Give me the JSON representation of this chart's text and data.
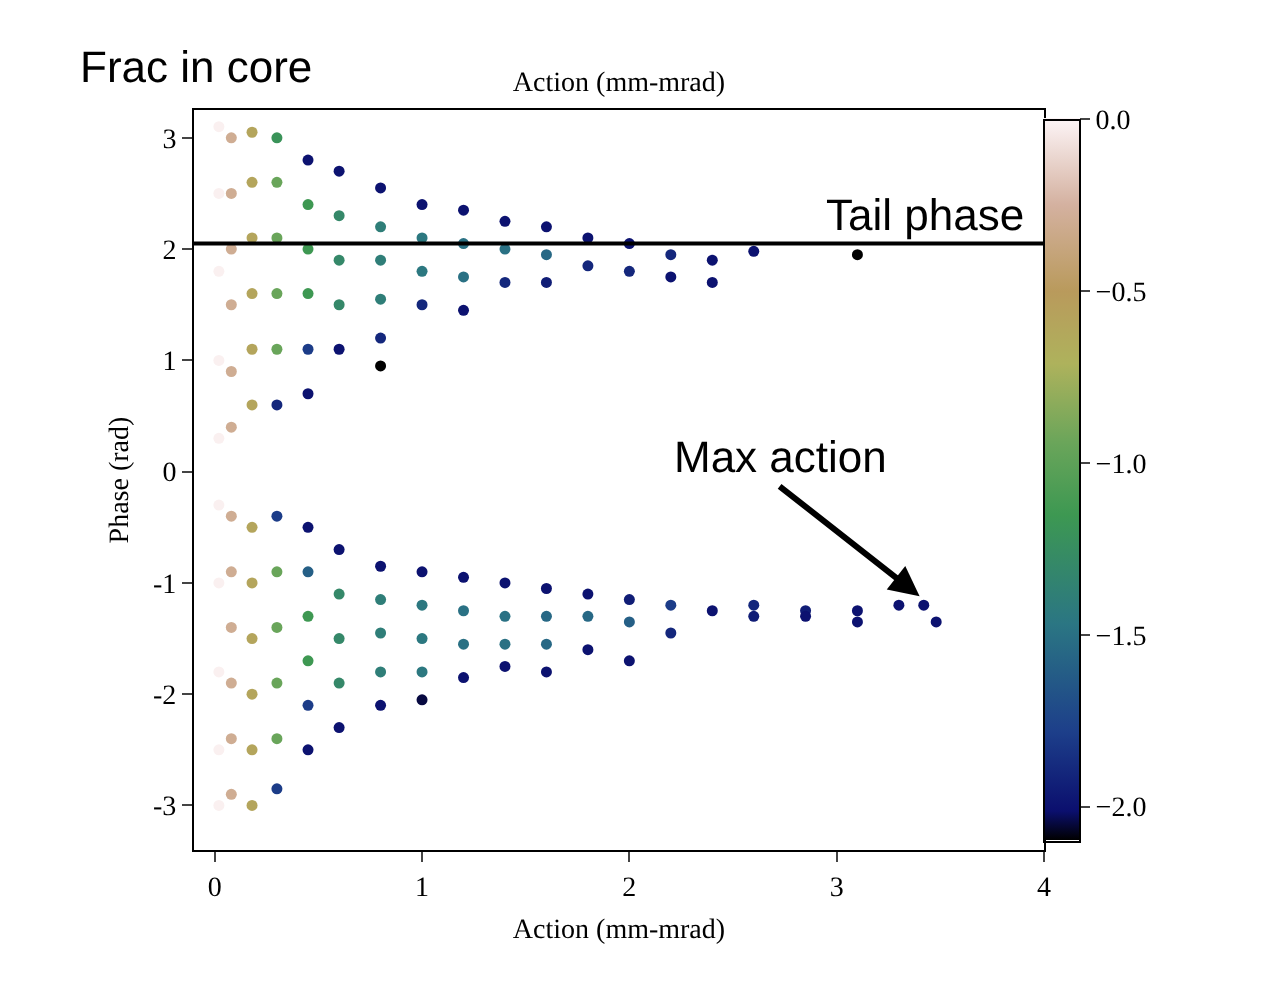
{
  "chart_data": {
    "type": "scatter",
    "clabel": "Frac in core",
    "x2label": "Action (mm-mrad)",
    "xlabel": "Action (mm-mrad)",
    "ylabel": "Phase (rad)",
    "xlim": [
      -0.1,
      4
    ],
    "xticks": [
      0,
      1,
      2,
      3,
      4
    ],
    "ylim": [
      -3.4,
      3.25
    ],
    "yticks": [
      -3,
      -2,
      -1,
      0,
      1,
      2,
      3
    ],
    "clim": [
      -2.1,
      0
    ],
    "cticks": [
      {
        "value": 0,
        "label": "0.0"
      },
      {
        "value": -0.5,
        "label": "−0.5"
      },
      {
        "value": -1,
        "label": "−1.0"
      },
      {
        "value": -1.5,
        "label": "−1.5"
      },
      {
        "value": -2,
        "label": "−2.0"
      }
    ],
    "legend": false,
    "marker": "circle",
    "ref_lines": [
      {
        "axis": "y",
        "value": 2.05,
        "label": "Tail phase",
        "color": "#000000"
      }
    ],
    "annotations": [
      {
        "text": "Max action",
        "x": 3.4,
        "y": -1.12
      }
    ],
    "x": [
      0.02,
      0.02,
      0.02,
      0.02,
      0.02,
      0.02,
      0.02,
      0.02,
      0.02,
      0.02,
      0.08,
      0.08,
      0.08,
      0.08,
      0.08,
      0.08,
      0.08,
      0.08,
      0.08,
      0.08,
      0.08,
      0.08,
      0.18,
      0.18,
      0.18,
      0.18,
      0.18,
      0.18,
      0.18,
      0.18,
      0.18,
      0.18,
      0.18,
      0.18,
      0.3,
      0.3,
      0.3,
      0.3,
      0.3,
      0.3,
      0.3,
      0.3,
      0.3,
      0.3,
      0.3,
      0.3,
      0.45,
      0.45,
      0.45,
      0.45,
      0.45,
      0.45,
      0.45,
      0.45,
      0.45,
      0.45,
      0.45,
      0.45,
      0.6,
      0.6,
      0.6,
      0.6,
      0.6,
      0.6,
      0.6,
      0.6,
      0.6,
      0.6,
      0.8,
      0.8,
      0.8,
      0.8,
      0.8,
      0.8,
      0.8,
      0.8,
      0.8,
      0.8,
      0.8,
      1.0,
      1.0,
      1.0,
      1.0,
      1.0,
      1.0,
      1.0,
      1.0,
      1.0,
      1.2,
      1.2,
      1.2,
      1.2,
      1.2,
      1.2,
      1.2,
      1.2,
      1.4,
      1.4,
      1.4,
      1.4,
      1.4,
      1.4,
      1.4,
      1.6,
      1.6,
      1.6,
      1.6,
      1.6,
      1.6,
      1.6,
      1.8,
      1.8,
      1.8,
      1.8,
      1.8,
      2.0,
      2.0,
      2.0,
      2.0,
      2.0,
      2.2,
      2.2,
      2.2,
      2.2,
      2.4,
      2.4,
      2.4,
      2.6,
      2.6,
      2.6,
      2.85,
      2.85,
      3.1,
      3.1,
      3.1,
      3.3,
      3.42,
      3.48
    ],
    "values": [
      3.1,
      2.5,
      1.8,
      1.0,
      0.3,
      -0.3,
      -1.0,
      -1.8,
      -2.5,
      -3.0,
      3.0,
      2.5,
      2.0,
      1.5,
      0.9,
      0.4,
      -0.4,
      -0.9,
      -1.4,
      -1.9,
      -2.4,
      -2.9,
      3.05,
      2.6,
      2.1,
      1.6,
      1.1,
      0.6,
      -0.5,
      -1.0,
      -1.5,
      -2.0,
      -2.5,
      -3.0,
      3.0,
      2.6,
      2.1,
      1.6,
      1.1,
      0.6,
      -0.4,
      -0.9,
      -1.4,
      -1.9,
      -2.4,
      -2.85,
      2.8,
      2.4,
      2.0,
      1.6,
      1.1,
      0.7,
      -0.5,
      -0.9,
      -1.3,
      -1.7,
      -2.1,
      -2.5,
      2.7,
      2.3,
      1.9,
      1.5,
      1.1,
      -0.7,
      -1.1,
      -1.5,
      -1.9,
      -2.3,
      2.55,
      2.2,
      1.9,
      1.55,
      1.2,
      0.95,
      -0.85,
      -1.15,
      -1.45,
      -1.8,
      -2.1,
      2.4,
      2.1,
      1.8,
      1.5,
      -0.9,
      -1.2,
      -1.5,
      -1.8,
      -2.05,
      2.35,
      2.05,
      1.75,
      1.45,
      -0.95,
      -1.25,
      -1.55,
      -1.85,
      2.25,
      2.0,
      1.7,
      -1.0,
      -1.3,
      -1.55,
      -1.75,
      2.2,
      1.95,
      1.7,
      -1.05,
      -1.3,
      -1.55,
      -1.8,
      2.1,
      1.85,
      -1.1,
      -1.3,
      -1.6,
      2.05,
      1.8,
      -1.15,
      -1.35,
      -1.7,
      1.95,
      1.75,
      -1.2,
      -1.45,
      1.9,
      1.7,
      -1.25,
      1.98,
      -1.2,
      -1.3,
      -1.25,
      -1.3,
      1.95,
      -1.25,
      -1.35,
      -1.2,
      -1.2,
      -1.35
    ],
    "cvalues": [
      -0.02,
      -0.02,
      -0.02,
      -0.02,
      -0.02,
      -0.02,
      -0.02,
      -0.02,
      -0.02,
      -0.02,
      -0.3,
      -0.3,
      -0.3,
      -0.3,
      -0.3,
      -0.3,
      -0.3,
      -0.3,
      -0.3,
      -0.3,
      -0.3,
      -0.3,
      -0.6,
      -0.6,
      -0.6,
      -0.6,
      -0.6,
      -0.6,
      -0.6,
      -0.6,
      -0.6,
      -0.6,
      -0.6,
      -0.6,
      -1.2,
      -0.95,
      -0.95,
      -0.95,
      -0.95,
      -1.9,
      -1.8,
      -0.95,
      -0.95,
      -0.95,
      -0.95,
      -1.8,
      -2.0,
      -1.15,
      -1.15,
      -1.15,
      -1.8,
      -2.0,
      -2.0,
      -1.6,
      -1.15,
      -1.15,
      -1.8,
      -2.0,
      -2.0,
      -1.3,
      -1.3,
      -1.3,
      -2.0,
      -2.0,
      -1.3,
      -1.3,
      -1.3,
      -2.0,
      -2.0,
      -1.4,
      -1.4,
      -1.4,
      -1.9,
      -2.1,
      -2.0,
      -1.4,
      -1.4,
      -1.4,
      -2.0,
      -2.0,
      -1.45,
      -1.45,
      -1.9,
      -2.0,
      -1.45,
      -1.45,
      -1.45,
      -2.05,
      -2.0,
      -1.5,
      -1.5,
      -2.0,
      -2.0,
      -1.5,
      -1.5,
      -2.0,
      -2.0,
      -1.5,
      -1.9,
      -2.0,
      -1.5,
      -1.5,
      -2.0,
      -2.0,
      -1.55,
      -1.95,
      -2.0,
      -1.55,
      -1.55,
      -2.0,
      -2.0,
      -1.9,
      -2.0,
      -1.55,
      -2.0,
      -2.0,
      -1.9,
      -1.95,
      -1.6,
      -2.0,
      -1.9,
      -2.0,
      -1.8,
      -1.9,
      -2.0,
      -2.0,
      -2.0,
      -2.0,
      -1.9,
      -1.95,
      -1.95,
      -2.0,
      -2.1,
      -2.0,
      -2.0,
      -2.0,
      -2.0,
      -2.0
    ]
  }
}
